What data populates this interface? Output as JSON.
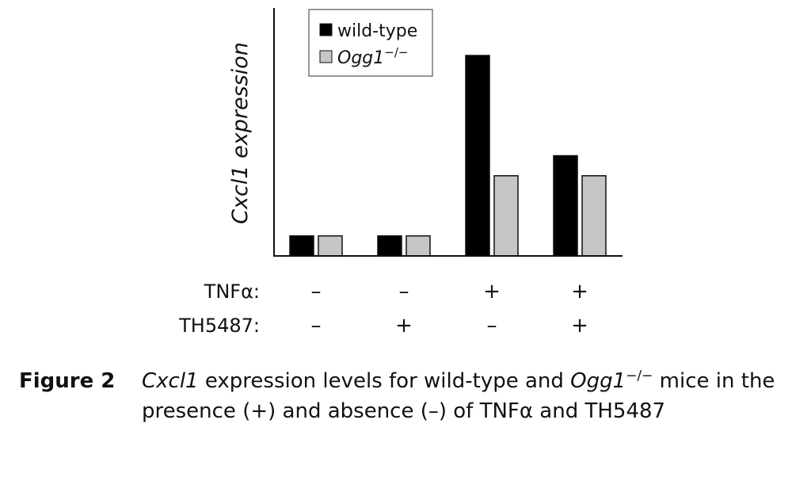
{
  "chart_data": {
    "type": "bar",
    "ylabel": "Cxcl1 expression",
    "categories": [
      {
        "tnfa": "–",
        "th5487": "–"
      },
      {
        "tnfa": "–",
        "th5487": "+"
      },
      {
        "tnfa": "+",
        "th5487": "–"
      },
      {
        "tnfa": "+",
        "th5487": "+"
      }
    ],
    "series": [
      {
        "name": "wild-type",
        "color": "#000000",
        "values": [
          1,
          1,
          10,
          5
        ]
      },
      {
        "name": "Ogg1",
        "superscript": "−/−",
        "color": "#c6c6c6",
        "values": [
          1,
          1,
          4,
          4
        ]
      }
    ],
    "ylim": [
      0,
      12
    ],
    "grid": false,
    "legend_position": "top-left",
    "row_labels": {
      "tnfa": "TNFα:",
      "th5487": "TH5487:"
    }
  },
  "caption": {
    "label": "Figure 2",
    "gene": "Cxcl1",
    "part1": " expression levels for wild-type and ",
    "mouse_gene": "Ogg1",
    "superscript": "−/−",
    "part2": " mice in the presence (+) and absence (–) of TNFα and TH5487"
  }
}
